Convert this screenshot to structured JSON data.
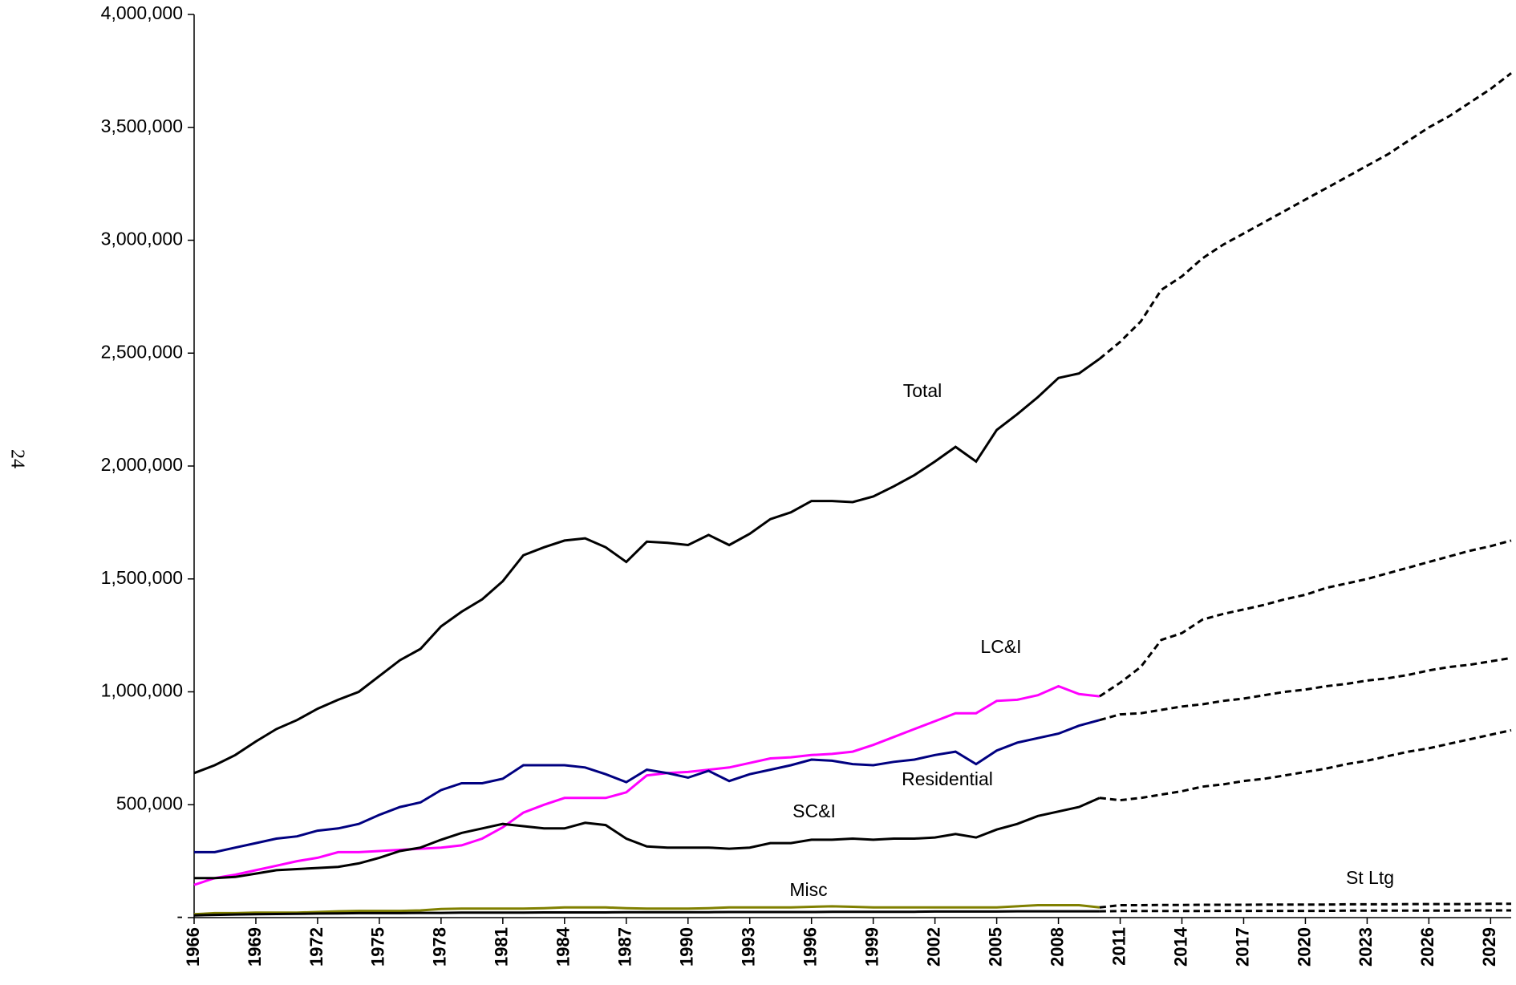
{
  "chart_data": {
    "type": "line",
    "page_number": "24",
    "x": [
      1966,
      1967,
      1968,
      1969,
      1970,
      1971,
      1972,
      1973,
      1974,
      1975,
      1976,
      1977,
      1978,
      1979,
      1980,
      1981,
      1982,
      1983,
      1984,
      1985,
      1986,
      1987,
      1988,
      1989,
      1990,
      1991,
      1992,
      1993,
      1994,
      1995,
      1996,
      1997,
      1998,
      1999,
      2000,
      2001,
      2002,
      2003,
      2004,
      2005,
      2006,
      2007,
      2008,
      2009,
      2010,
      2011,
      2012,
      2013,
      2014,
      2015,
      2016,
      2017,
      2018,
      2019,
      2020,
      2021,
      2022,
      2023,
      2024,
      2025,
      2026,
      2027,
      2028,
      2029,
      2030
    ],
    "forecast_from": 2010,
    "series": [
      {
        "name": "Total",
        "color": "#000000",
        "values": [
          640000,
          675000,
          720000,
          780000,
          835000,
          875000,
          925000,
          965000,
          1000000,
          1070000,
          1140000,
          1190000,
          1290000,
          1355000,
          1410000,
          1490000,
          1605000,
          1640000,
          1670000,
          1680000,
          1640000,
          1575000,
          1665000,
          1660000,
          1650000,
          1695000,
          1650000,
          1700000,
          1765000,
          1795000,
          1845000,
          1845000,
          1840000,
          1865000,
          1910000,
          1960000,
          2020000,
          2085000,
          2020000,
          2160000,
          2230000,
          2305000,
          2390000,
          2410000,
          2475000,
          2550000,
          2640000,
          2780000,
          2840000,
          2920000,
          2980000,
          3030000,
          3080000,
          3130000,
          3180000,
          3230000,
          3280000,
          3330000,
          3380000,
          3440000,
          3500000,
          3550000,
          3610000,
          3670000,
          3740000
        ]
      },
      {
        "name": "LC&I",
        "color": "#ff00ff",
        "values": [
          145000,
          175000,
          190000,
          210000,
          230000,
          250000,
          265000,
          290000,
          290000,
          295000,
          300000,
          305000,
          310000,
          320000,
          350000,
          400000,
          465000,
          500000,
          530000,
          530000,
          530000,
          555000,
          630000,
          640000,
          645000,
          655000,
          665000,
          685000,
          705000,
          710000,
          720000,
          725000,
          735000,
          765000,
          800000,
          835000,
          870000,
          905000,
          905000,
          960000,
          965000,
          985000,
          1025000,
          990000,
          980000,
          1040000,
          1110000,
          1230000,
          1260000,
          1320000,
          1345000,
          1365000,
          1385000,
          1410000,
          1430000,
          1460000,
          1480000,
          1500000,
          1525000,
          1550000,
          1575000,
          1600000,
          1625000,
          1645000,
          1670000
        ]
      },
      {
        "name": "Residential",
        "color": "#000080",
        "values": [
          290000,
          290000,
          310000,
          330000,
          350000,
          360000,
          385000,
          395000,
          415000,
          455000,
          490000,
          510000,
          565000,
          595000,
          595000,
          615000,
          675000,
          675000,
          675000,
          665000,
          635000,
          600000,
          655000,
          640000,
          620000,
          650000,
          605000,
          635000,
          655000,
          675000,
          700000,
          695000,
          680000,
          675000,
          690000,
          700000,
          720000,
          735000,
          680000,
          740000,
          775000,
          795000,
          815000,
          850000,
          875000,
          900000,
          905000,
          920000,
          935000,
          945000,
          960000,
          970000,
          985000,
          1000000,
          1010000,
          1025000,
          1035000,
          1050000,
          1060000,
          1075000,
          1095000,
          1110000,
          1120000,
          1135000,
          1150000
        ]
      },
      {
        "name": "SC&I",
        "color": "#000000",
        "values": [
          175000,
          175000,
          180000,
          195000,
          210000,
          215000,
          220000,
          225000,
          240000,
          265000,
          295000,
          310000,
          345000,
          375000,
          395000,
          415000,
          405000,
          395000,
          395000,
          420000,
          410000,
          350000,
          315000,
          310000,
          310000,
          310000,
          305000,
          310000,
          330000,
          330000,
          345000,
          345000,
          350000,
          345000,
          350000,
          350000,
          355000,
          370000,
          355000,
          390000,
          415000,
          450000,
          470000,
          490000,
          530000,
          520000,
          530000,
          545000,
          560000,
          580000,
          590000,
          605000,
          615000,
          630000,
          645000,
          660000,
          680000,
          695000,
          715000,
          735000,
          750000,
          770000,
          790000,
          810000,
          830000
        ]
      },
      {
        "name": "Misc",
        "color": "#808000",
        "values": [
          15000,
          20000,
          20000,
          22000,
          22000,
          22000,
          25000,
          28000,
          30000,
          30000,
          30000,
          32000,
          38000,
          40000,
          40000,
          40000,
          40000,
          42000,
          45000,
          45000,
          45000,
          42000,
          40000,
          40000,
          40000,
          42000,
          45000,
          45000,
          45000,
          45000,
          48000,
          50000,
          48000,
          45000,
          45000,
          45000,
          45000,
          45000,
          45000,
          45000,
          50000,
          55000,
          55000,
          55000,
          45000,
          55000,
          55000,
          56000,
          56000,
          57000,
          57000,
          57000,
          58000,
          58000,
          58000,
          58000,
          59000,
          59000,
          59000,
          60000,
          60000,
          60000,
          60000,
          61000,
          61000
        ]
      },
      {
        "name": "St Ltg",
        "color": "#000000",
        "values": [
          10000,
          12000,
          14000,
          15000,
          16000,
          17000,
          18000,
          19000,
          20000,
          20000,
          20000,
          21000,
          21000,
          22000,
          22000,
          22000,
          22000,
          23000,
          23000,
          23000,
          23000,
          24000,
          24000,
          24000,
          24000,
          24000,
          25000,
          25000,
          25000,
          25000,
          25000,
          26000,
          26000,
          26000,
          26000,
          26000,
          27000,
          27000,
          27000,
          27000,
          28000,
          28000,
          28000,
          28000,
          28000,
          29000,
          29000,
          29000,
          29000,
          29000,
          30000,
          30000,
          30000,
          30000,
          30000,
          30000,
          31000,
          31000,
          31000,
          31000,
          31000,
          31000,
          32000,
          32000,
          32000
        ]
      }
    ],
    "xlim": [
      1966,
      2030
    ],
    "xticks": [
      1966,
      1969,
      1972,
      1975,
      1978,
      1981,
      1984,
      1987,
      1990,
      1993,
      1996,
      1999,
      2002,
      2005,
      2008,
      2011,
      2014,
      2017,
      2020,
      2023,
      2026,
      2029
    ],
    "ylim": [
      0,
      4000000
    ],
    "yticks": [
      {
        "value": 0,
        "label": "-"
      },
      {
        "value": 500000,
        "label": "500,000"
      },
      {
        "value": 1000000,
        "label": "1,000,000"
      },
      {
        "value": 1500000,
        "label": "1,500,000"
      },
      {
        "value": 2000000,
        "label": "2,000,000"
      },
      {
        "value": 2500000,
        "label": "2,500,000"
      },
      {
        "value": 3000000,
        "label": "3,000,000"
      },
      {
        "value": 3500000,
        "label": "3,500,000"
      },
      {
        "value": 4000000,
        "label": "4,000,000"
      }
    ]
  }
}
